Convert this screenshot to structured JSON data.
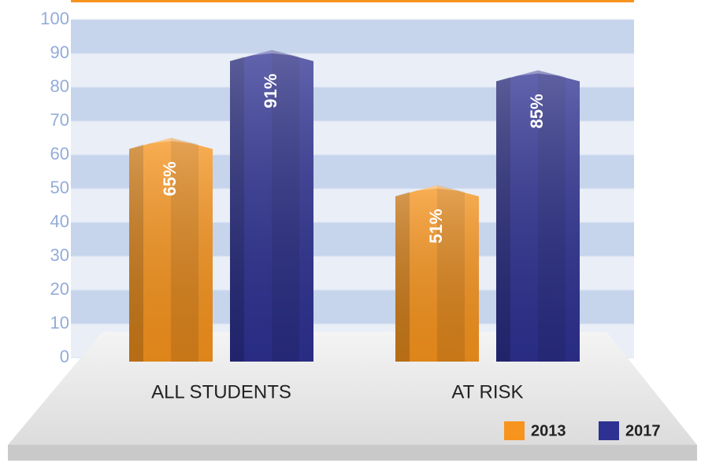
{
  "chart_data": {
    "type": "bar3d",
    "categories": [
      "ALL STUDENTS",
      "AT RISK"
    ],
    "series": [
      {
        "name": "2013",
        "color": "#f7941d",
        "values": [
          65,
          51
        ],
        "value_labels": [
          "65%",
          "51%"
        ]
      },
      {
        "name": "2017",
        "color": "#2e3192",
        "values": [
          91,
          85
        ],
        "value_labels": [
          "91%",
          "85%"
        ]
      }
    ],
    "ylim": [
      0,
      100
    ],
    "yticks": [
      0,
      10,
      20,
      30,
      40,
      50,
      60,
      70,
      80,
      90,
      100
    ],
    "grid": true,
    "legend": "bottom-right"
  }
}
